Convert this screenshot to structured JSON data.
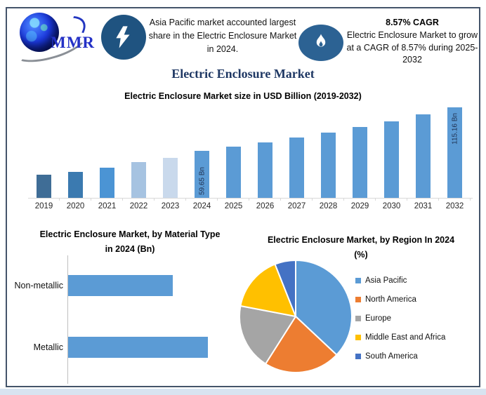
{
  "header": {
    "logo_text": "MMR",
    "highlight_left": "Asia Pacific market accounted largest share in the Electric Enclosure Market in 2024.",
    "cagr_title": "8.57% CAGR",
    "cagr_text": "Electric Enclosure Market to grow at a CAGR of 8.57% during 2025-2032"
  },
  "main_title": "Electric Enclosure Market",
  "colors": {
    "border": "#44546A",
    "badge_bolt": "#1F5380",
    "badge_flame": "#2C6293",
    "title_navy": "#1F3864",
    "accent_blue": "#5B9BD5"
  },
  "chart_data": [
    {
      "type": "bar",
      "title": "Electric Enclosure Market size in USD Billion (2019-2032)",
      "ylabel": "USD Billion",
      "categories": [
        "2019",
        "2020",
        "2021",
        "2022",
        "2023",
        "2024",
        "2025",
        "2026",
        "2027",
        "2028",
        "2029",
        "2030",
        "2031",
        "2032"
      ],
      "values": [
        29.5,
        33.2,
        38.6,
        45.8,
        51.3,
        59.65,
        64.76,
        70.31,
        76.34,
        82.88,
        89.98,
        97.69,
        106.07,
        115.16
      ],
      "data_labels": {
        "2024": {
          "text": "59.65 Bn",
          "align": "bottom"
        },
        "2032": {
          "text": "115.16 Bn",
          "align": "top"
        }
      },
      "bar_colors": [
        "#3F6D96",
        "#3B7AB0",
        "#4B94D4",
        "#A6C3E1",
        "#C9D9EC",
        "#5B9BD5",
        "#5B9BD5",
        "#5B9BD5",
        "#5B9BD5",
        "#5B9BD5",
        "#5B9BD5",
        "#5B9BD5",
        "#5B9BD5",
        "#5B9BD5"
      ],
      "grid": false,
      "legend": false
    },
    {
      "type": "bar",
      "orientation": "horizontal",
      "title": "Electric Enclosure Market, by Material Type in 2024 (Bn)",
      "categories": [
        "Non-metallic",
        "Metallic"
      ],
      "values": [
        25.6,
        34.1
      ],
      "bar_color": "#5B9BD5",
      "grid": false,
      "legend": false
    },
    {
      "type": "pie",
      "title": "Electric Enclosure Market, by Region In 2024 (%)",
      "labels": [
        "Asia Pacific",
        "North America",
        "Europe",
        "Middle East and Africa",
        "South America"
      ],
      "values": [
        37,
        22,
        19,
        16,
        6
      ],
      "colors": [
        "#5B9BD5",
        "#ED7D31",
        "#A5A5A5",
        "#FFC000",
        "#4472C4"
      ],
      "start_angle_deg": 0,
      "direction": "clockwise",
      "legend_position": "right"
    }
  ]
}
